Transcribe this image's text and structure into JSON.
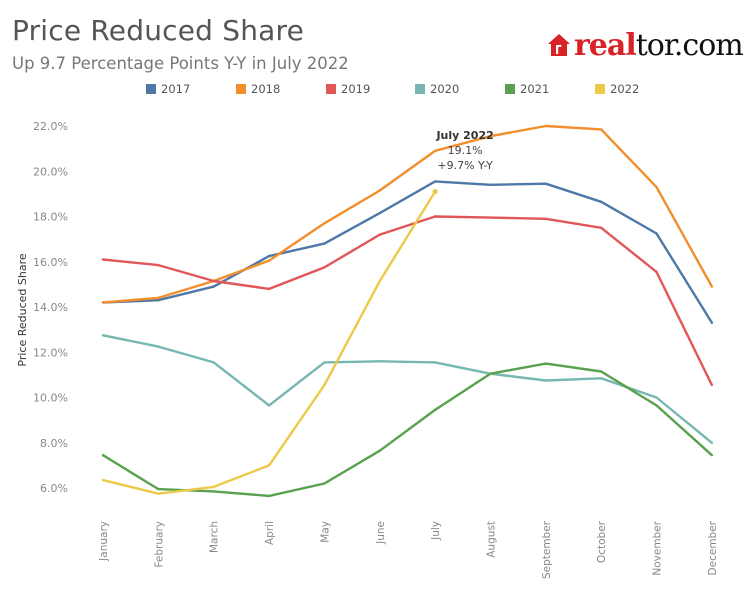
{
  "header": {
    "title": "Price Reduced Share",
    "subtitle": "Up 9.7 Percentage Points Y-Y in July 2022",
    "logo": {
      "brand_red": "real",
      "brand_dark": "tor.com",
      "icon": "house-icon",
      "color": "#d92228"
    }
  },
  "chart_data": {
    "type": "line",
    "title": "Price Reduced Share",
    "subtitle": "Up 9.7 Percentage Points Y-Y in July 2022",
    "xlabel": "",
    "ylabel": "Price Reduced Share",
    "ylim": [
      5.0,
      22.5
    ],
    "yticks": [
      6.0,
      8.0,
      10.0,
      12.0,
      14.0,
      16.0,
      18.0,
      20.0,
      22.0
    ],
    "ytick_labels": [
      "6.0%",
      "8.0%",
      "10.0%",
      "12.0%",
      "14.0%",
      "16.0%",
      "18.0%",
      "20.0%",
      "22.0%"
    ],
    "grid": false,
    "legend_position": "top-center",
    "categories": [
      "January",
      "February",
      "March",
      "April",
      "May",
      "June",
      "July",
      "August",
      "September",
      "October",
      "November",
      "December"
    ],
    "series": [
      {
        "name": "2017",
        "color": "#4e79a7",
        "values": [
          14.2,
          14.3,
          14.9,
          16.25,
          16.8,
          18.15,
          19.55,
          19.4,
          19.45,
          18.65,
          17.25,
          13.3
        ]
      },
      {
        "name": "2018",
        "color": "#f28e2b",
        "values": [
          14.2,
          14.4,
          15.15,
          16.05,
          17.7,
          19.15,
          20.9,
          21.55,
          22.0,
          21.85,
          19.3,
          14.9
        ]
      },
      {
        "name": "2019",
        "color": "#e15759",
        "values": [
          16.1,
          15.85,
          15.15,
          14.8,
          15.75,
          17.2,
          18.0,
          17.95,
          17.9,
          17.5,
          15.55,
          10.55
        ]
      },
      {
        "name": "2020",
        "color": "#76b7b2",
        "values": [
          12.75,
          12.25,
          11.55,
          9.65,
          11.55,
          11.6,
          11.55,
          11.05,
          10.75,
          10.85,
          10.0,
          8.0
        ]
      },
      {
        "name": "2021",
        "color": "#59a14f",
        "values": [
          7.45,
          5.95,
          5.85,
          5.65,
          6.2,
          7.65,
          9.45,
          11.05,
          11.5,
          11.15,
          9.65,
          7.45
        ]
      },
      {
        "name": "2022",
        "color": "#edc948",
        "values": [
          6.35,
          5.75,
          6.05,
          7.0,
          10.55,
          15.15,
          19.1
        ]
      }
    ],
    "annotation": {
      "series": "2022",
      "category": "July",
      "title": "July 2022",
      "value_label": "19.1%",
      "change_label": "+9.7% Y-Y"
    }
  }
}
